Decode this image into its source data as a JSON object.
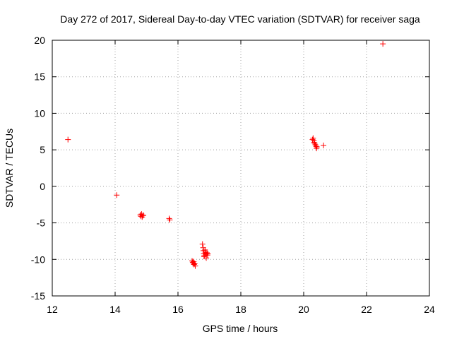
{
  "chart_data": {
    "type": "scatter",
    "title": "Day 272 of 2017, Sidereal Day-to-day VTEC variation (SDTVAR) for receiver saga",
    "xlabel": "GPS time / hours",
    "ylabel": "SDTVAR / TECUs",
    "xlim": [
      12,
      24
    ],
    "ylim": [
      -15,
      20
    ],
    "xticks": [
      12,
      14,
      16,
      18,
      20,
      22,
      24
    ],
    "yticks": [
      -15,
      -10,
      -5,
      0,
      5,
      10,
      15,
      20
    ],
    "grid": true,
    "marker": "+",
    "color": "#ff0000",
    "series": [
      {
        "name": "SDTVAR",
        "points": [
          [
            12.5,
            6.4
          ],
          [
            14.05,
            -1.2
          ],
          [
            14.8,
            -3.9
          ],
          [
            14.82,
            -4.1
          ],
          [
            14.84,
            -3.8
          ],
          [
            14.86,
            -4.2
          ],
          [
            14.88,
            -4.0
          ],
          [
            14.9,
            -3.95
          ],
          [
            15.72,
            -4.4
          ],
          [
            15.74,
            -4.6
          ],
          [
            16.45,
            -10.2
          ],
          [
            16.47,
            -10.4
          ],
          [
            16.49,
            -10.5
          ],
          [
            16.5,
            -10.3
          ],
          [
            16.51,
            -10.7
          ],
          [
            16.53,
            -10.6
          ],
          [
            16.55,
            -10.9
          ],
          [
            16.78,
            -7.9
          ],
          [
            16.8,
            -8.4
          ],
          [
            16.81,
            -8.8
          ],
          [
            16.82,
            -9.2
          ],
          [
            16.83,
            -9.6
          ],
          [
            16.84,
            -9.5
          ],
          [
            16.86,
            -8.7
          ],
          [
            16.87,
            -9.0
          ],
          [
            16.88,
            -9.3
          ],
          [
            16.9,
            -9.8
          ],
          [
            16.92,
            -9.1
          ],
          [
            16.94,
            -9.4
          ],
          [
            16.95,
            -9.2
          ],
          [
            20.28,
            6.4
          ],
          [
            20.3,
            6.6
          ],
          [
            20.32,
            6.3
          ],
          [
            20.33,
            6.0
          ],
          [
            20.35,
            5.9
          ],
          [
            20.37,
            5.7
          ],
          [
            20.39,
            5.5
          ],
          [
            20.41,
            5.2
          ],
          [
            20.42,
            5.4
          ],
          [
            20.63,
            5.6
          ],
          [
            22.52,
            19.5
          ]
        ]
      }
    ]
  }
}
